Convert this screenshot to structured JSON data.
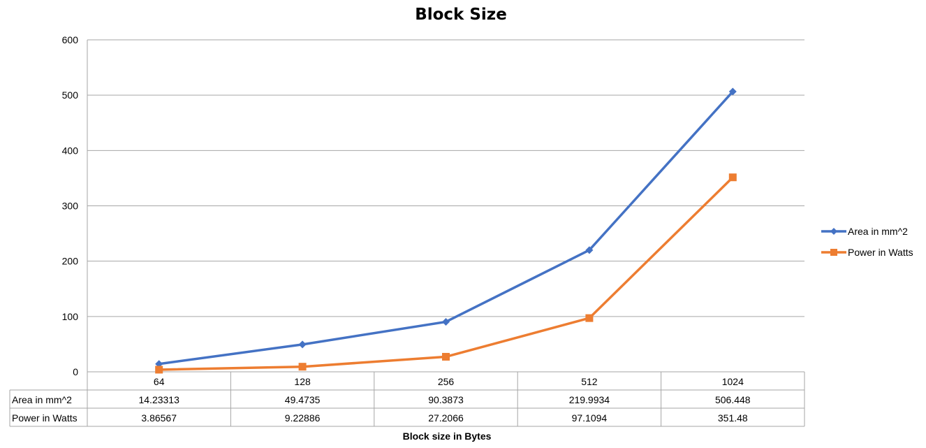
{
  "chart_data": {
    "type": "line",
    "title": "Block Size",
    "xlabel": "Block size in Bytes",
    "ylabel": "",
    "categories": [
      "64",
      "128",
      "256",
      "512",
      "1024"
    ],
    "ylim": [
      0,
      600
    ],
    "yticks": [
      0,
      100,
      200,
      300,
      400,
      500,
      600
    ],
    "grid": true,
    "legend_position": "right",
    "data_table": true,
    "series": [
      {
        "name": "Area in mm^2",
        "values": [
          14.23313,
          49.4735,
          90.3873,
          219.9934,
          506.448
        ],
        "labels": [
          "14.23313",
          "49.4735",
          "90.3873",
          "219.9934",
          "506.448"
        ],
        "color": "#4472C4",
        "marker": "diamond"
      },
      {
        "name": "Power in Watts",
        "values": [
          3.86567,
          9.22886,
          27.2066,
          97.1094,
          351.48
        ],
        "labels": [
          "3.86567",
          "9.22886",
          "27.2066",
          "97.1094",
          "351.48"
        ],
        "color": "#ED7D31",
        "marker": "square"
      }
    ]
  }
}
